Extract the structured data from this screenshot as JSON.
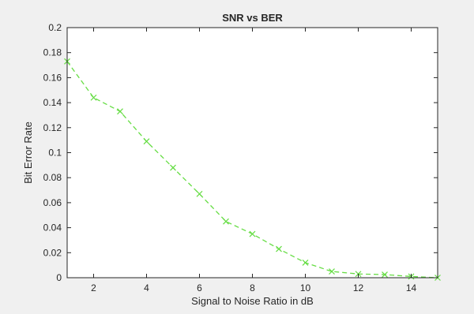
{
  "chart_data": {
    "type": "line",
    "title": "SNR vs BER",
    "xlabel": "Signal to Noise Ratio in dB",
    "ylabel": "Bit Error Rate",
    "xlim": [
      1,
      15
    ],
    "ylim": [
      0,
      0.2
    ],
    "xticks": [
      2,
      4,
      6,
      8,
      10,
      12,
      14
    ],
    "xtick_labels": [
      "2",
      "4",
      "6",
      "8",
      "10",
      "12",
      "14"
    ],
    "yticks": [
      0,
      0.02,
      0.04,
      0.06,
      0.08,
      0.1,
      0.12,
      0.14,
      0.16,
      0.18,
      0.2
    ],
    "ytick_labels": [
      "0",
      "0.02",
      "0.04",
      "0.06",
      "0.08",
      "0.1",
      "0.12",
      "0.14",
      "0.16",
      "0.18",
      "0.2"
    ],
    "grid": false,
    "series": [
      {
        "x": [
          1,
          2,
          3,
          4,
          5,
          6,
          7,
          8,
          9,
          10,
          11,
          12,
          13,
          14,
          15
        ],
        "y": [
          0.173,
          0.144,
          0.133,
          0.109,
          0.088,
          0.067,
          0.045,
          0.035,
          0.023,
          0.012,
          0.005,
          0.003,
          0.0025,
          0.001,
          0.0
        ],
        "color": "#66dd44",
        "line_style": "dashed",
        "marker": "x"
      }
    ]
  }
}
